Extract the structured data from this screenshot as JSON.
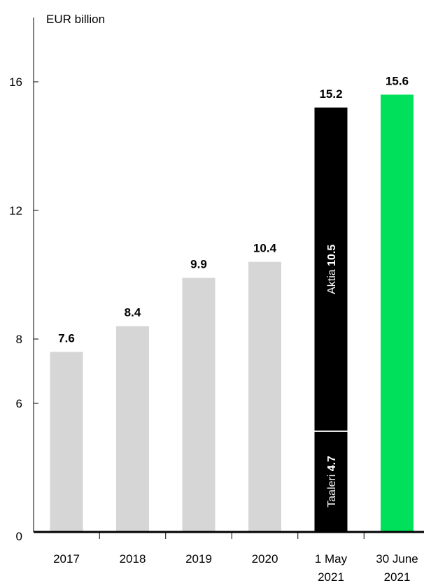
{
  "chart_data": {
    "type": "bar",
    "unit_label": "EUR billion",
    "y_ticks": [
      "0",
      "6",
      "8",
      "12",
      "16"
    ],
    "categories": [
      {
        "lines": [
          "2017"
        ],
        "value": 7.6,
        "label": "7.6",
        "color": "#d6d6d6"
      },
      {
        "lines": [
          "2018"
        ],
        "value": 8.4,
        "label": "8.4",
        "color": "#d6d6d6"
      },
      {
        "lines": [
          "2019"
        ],
        "value": 9.9,
        "label": "9.9",
        "color": "#d6d6d6"
      },
      {
        "lines": [
          "2020"
        ],
        "value": 10.4,
        "label": "10.4",
        "color": "#d6d6d6"
      },
      {
        "lines": [
          "1 May",
          "2021"
        ],
        "value": 15.2,
        "label": "15.2",
        "color": "#000000",
        "segments": [
          {
            "name": "Taaleri",
            "value": 4.7,
            "value_label": "4.7"
          },
          {
            "name": "Aktia",
            "value": 10.5,
            "value_label": "10.5"
          }
        ]
      },
      {
        "lines": [
          "30 June",
          "2021"
        ],
        "value": 15.6,
        "label": "15.6",
        "color": "#00e05a"
      }
    ],
    "grid": false,
    "legend": "none"
  }
}
